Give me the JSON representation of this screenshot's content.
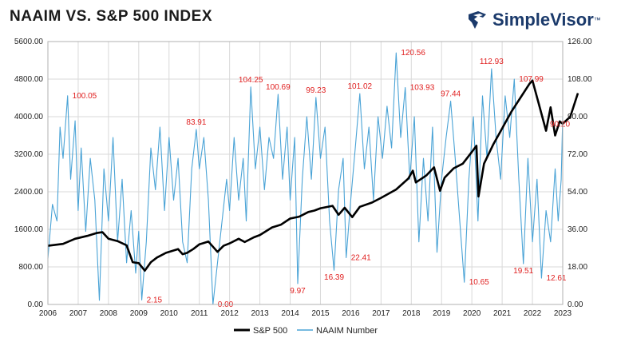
{
  "header": {
    "title": "NAAIM VS. S&P 500 INDEX",
    "brand": "SimpleVisor",
    "brand_tm": "™"
  },
  "chart_data": {
    "type": "line",
    "title": "NAAIM VS. S&P 500 INDEX",
    "x_ticks": [
      "2006",
      "2007",
      "2008",
      "2009",
      "2010",
      "2011",
      "2012",
      "2013",
      "2014",
      "2015",
      "2016",
      "2017",
      "2018",
      "2019",
      "2020",
      "2021",
      "2022",
      "2023"
    ],
    "xlim": [
      2006.0,
      2023.0
    ],
    "y_left": {
      "ticks": [
        "0.00",
        "800.00",
        "1600.00",
        "2400.00",
        "3200.00",
        "4000.00",
        "4800.00",
        "5600.00"
      ],
      "lim": [
        0,
        5600
      ]
    },
    "y_right": {
      "ticks": [
        "0.00",
        "18.00",
        "36.00",
        "54.00",
        "72.00",
        "90.00",
        "108.00",
        "126.00"
      ],
      "lim": [
        0,
        126
      ]
    },
    "grid": true,
    "legend": "bottom",
    "series": [
      {
        "name": "S&P 500",
        "axis": "left",
        "color": "#000000",
        "points": [
          [
            2006.0,
            1250
          ],
          [
            2006.5,
            1290
          ],
          [
            2006.9,
            1400
          ],
          [
            2007.3,
            1460
          ],
          [
            2007.6,
            1520
          ],
          [
            2007.8,
            1540
          ],
          [
            2008.0,
            1400
          ],
          [
            2008.3,
            1350
          ],
          [
            2008.6,
            1260
          ],
          [
            2008.8,
            900
          ],
          [
            2009.0,
            880
          ],
          [
            2009.2,
            720
          ],
          [
            2009.4,
            900
          ],
          [
            2009.6,
            1000
          ],
          [
            2009.9,
            1100
          ],
          [
            2010.3,
            1180
          ],
          [
            2010.45,
            1070
          ],
          [
            2010.6,
            1100
          ],
          [
            2010.8,
            1180
          ],
          [
            2011.0,
            1280
          ],
          [
            2011.3,
            1340
          ],
          [
            2011.6,
            1120
          ],
          [
            2011.8,
            1250
          ],
          [
            2012.0,
            1300
          ],
          [
            2012.3,
            1400
          ],
          [
            2012.5,
            1330
          ],
          [
            2012.8,
            1430
          ],
          [
            2013.0,
            1480
          ],
          [
            2013.4,
            1640
          ],
          [
            2013.7,
            1700
          ],
          [
            2014.0,
            1830
          ],
          [
            2014.3,
            1870
          ],
          [
            2014.6,
            1970
          ],
          [
            2014.8,
            2000
          ],
          [
            2015.0,
            2050
          ],
          [
            2015.4,
            2100
          ],
          [
            2015.6,
            1910
          ],
          [
            2015.8,
            2060
          ],
          [
            2016.05,
            1860
          ],
          [
            2016.3,
            2080
          ],
          [
            2016.7,
            2170
          ],
          [
            2017.0,
            2270
          ],
          [
            2017.5,
            2450
          ],
          [
            2017.9,
            2680
          ],
          [
            2018.05,
            2850
          ],
          [
            2018.15,
            2600
          ],
          [
            2018.5,
            2750
          ],
          [
            2018.75,
            2920
          ],
          [
            2018.95,
            2420
          ],
          [
            2019.1,
            2700
          ],
          [
            2019.4,
            2900
          ],
          [
            2019.7,
            3000
          ],
          [
            2020.0,
            3250
          ],
          [
            2020.15,
            3380
          ],
          [
            2020.22,
            2300
          ],
          [
            2020.4,
            3000
          ],
          [
            2020.7,
            3400
          ],
          [
            2021.0,
            3750
          ],
          [
            2021.3,
            4100
          ],
          [
            2021.6,
            4400
          ],
          [
            2021.9,
            4700
          ],
          [
            2022.0,
            4770
          ],
          [
            2022.2,
            4300
          ],
          [
            2022.45,
            3700
          ],
          [
            2022.6,
            4200
          ],
          [
            2022.75,
            3600
          ],
          [
            2022.9,
            3900
          ],
          [
            2023.0,
            3850
          ],
          [
            2023.25,
            4000
          ],
          [
            2023.5,
            4500
          ]
        ]
      },
      {
        "name": "NAAIM Number",
        "axis": "right",
        "color": "#4aa3d6",
        "points": [
          [
            2006.0,
            22
          ],
          [
            2006.15,
            48
          ],
          [
            2006.3,
            40
          ],
          [
            2006.4,
            85
          ],
          [
            2006.5,
            70
          ],
          [
            2006.65,
            100.05
          ],
          [
            2006.75,
            60
          ],
          [
            2006.9,
            88
          ],
          [
            2007.0,
            45
          ],
          [
            2007.1,
            75
          ],
          [
            2007.25,
            35
          ],
          [
            2007.4,
            70
          ],
          [
            2007.55,
            50
          ],
          [
            2007.7,
            2
          ],
          [
            2007.85,
            65
          ],
          [
            2008.0,
            40
          ],
          [
            2008.15,
            80
          ],
          [
            2008.3,
            30
          ],
          [
            2008.45,
            60
          ],
          [
            2008.6,
            20
          ],
          [
            2008.75,
            45
          ],
          [
            2008.9,
            15
          ],
          [
            2009.0,
            35
          ],
          [
            2009.1,
            2.15
          ],
          [
            2009.25,
            30
          ],
          [
            2009.4,
            75
          ],
          [
            2009.55,
            55
          ],
          [
            2009.7,
            85
          ],
          [
            2009.85,
            45
          ],
          [
            2010.0,
            80
          ],
          [
            2010.15,
            50
          ],
          [
            2010.3,
            70
          ],
          [
            2010.45,
            30
          ],
          [
            2010.6,
            20
          ],
          [
            2010.75,
            65
          ],
          [
            2010.9,
            83.91
          ],
          [
            2011.0,
            65
          ],
          [
            2011.15,
            80
          ],
          [
            2011.3,
            50
          ],
          [
            2011.45,
            0
          ],
          [
            2011.6,
            20
          ],
          [
            2011.75,
            40
          ],
          [
            2011.9,
            60
          ],
          [
            2012.0,
            45
          ],
          [
            2012.15,
            80
          ],
          [
            2012.3,
            50
          ],
          [
            2012.45,
            70
          ],
          [
            2012.55,
            40
          ],
          [
            2012.7,
            104.25
          ],
          [
            2012.85,
            65
          ],
          [
            2013.0,
            85
          ],
          [
            2013.15,
            55
          ],
          [
            2013.3,
            80
          ],
          [
            2013.45,
            70
          ],
          [
            2013.6,
            100.69
          ],
          [
            2013.75,
            60
          ],
          [
            2013.9,
            85
          ],
          [
            2014.0,
            50
          ],
          [
            2014.15,
            80
          ],
          [
            2014.25,
            9.97
          ],
          [
            2014.4,
            60
          ],
          [
            2014.55,
            90
          ],
          [
            2014.7,
            60
          ],
          [
            2014.85,
            99.23
          ],
          [
            2015.0,
            70
          ],
          [
            2015.15,
            85
          ],
          [
            2015.3,
            40
          ],
          [
            2015.45,
            16.39
          ],
          [
            2015.6,
            55
          ],
          [
            2015.75,
            70
          ],
          [
            2015.85,
            22.41
          ],
          [
            2016.0,
            50
          ],
          [
            2016.15,
            75
          ],
          [
            2016.3,
            101.02
          ],
          [
            2016.45,
            65
          ],
          [
            2016.6,
            85
          ],
          [
            2016.75,
            50
          ],
          [
            2016.9,
            90
          ],
          [
            2017.05,
            70
          ],
          [
            2017.2,
            95
          ],
          [
            2017.35,
            75
          ],
          [
            2017.5,
            120.56
          ],
          [
            2017.65,
            80
          ],
          [
            2017.8,
            103.93
          ],
          [
            2017.95,
            60
          ],
          [
            2018.1,
            90
          ],
          [
            2018.25,
            30
          ],
          [
            2018.4,
            70
          ],
          [
            2018.55,
            40
          ],
          [
            2018.7,
            85
          ],
          [
            2018.85,
            25
          ],
          [
            2019.0,
            60
          ],
          [
            2019.15,
            80
          ],
          [
            2019.3,
            97.44
          ],
          [
            2019.45,
            70
          ],
          [
            2019.6,
            40
          ],
          [
            2019.75,
            10.65
          ],
          [
            2019.9,
            60
          ],
          [
            2020.05,
            90
          ],
          [
            2020.2,
            40
          ],
          [
            2020.35,
            100
          ],
          [
            2020.5,
            70
          ],
          [
            2020.65,
            112.93
          ],
          [
            2020.8,
            80
          ],
          [
            2020.95,
            60
          ],
          [
            2021.1,
            100
          ],
          [
            2021.25,
            80
          ],
          [
            2021.4,
            107.99
          ],
          [
            2021.55,
            60
          ],
          [
            2021.7,
            19.51
          ],
          [
            2021.85,
            70
          ],
          [
            2022.0,
            30
          ],
          [
            2022.15,
            60
          ],
          [
            2022.3,
            12.61
          ],
          [
            2022.45,
            45
          ],
          [
            2022.6,
            30
          ],
          [
            2022.75,
            65
          ],
          [
            2022.85,
            40
          ],
          [
            2022.95,
            60
          ],
          [
            2023.0,
            90.2
          ]
        ]
      }
    ],
    "annotations": [
      {
        "text": "100.05",
        "x": 2006.65,
        "y": 100.05,
        "anchor": "right"
      },
      {
        "text": "2.15",
        "x": 2009.1,
        "y": 2.15,
        "anchor": "right"
      },
      {
        "text": "83.91",
        "x": 2010.9,
        "y": 83.91,
        "anchor": "top"
      },
      {
        "text": "0.00",
        "x": 2011.45,
        "y": 0.0,
        "anchor": "right"
      },
      {
        "text": "104.25",
        "x": 2012.7,
        "y": 104.25,
        "anchor": "top"
      },
      {
        "text": "100.69",
        "x": 2013.6,
        "y": 100.69,
        "anchor": "top"
      },
      {
        "text": "9.97",
        "x": 2014.25,
        "y": 9.97,
        "anchor": "bottom"
      },
      {
        "text": "99.23",
        "x": 2014.85,
        "y": 99.23,
        "anchor": "top"
      },
      {
        "text": "16.39",
        "x": 2015.45,
        "y": 16.39,
        "anchor": "bottom"
      },
      {
        "text": "101.02",
        "x": 2016.3,
        "y": 101.02,
        "anchor": "top"
      },
      {
        "text": "22.41",
        "x": 2015.85,
        "y": 22.41,
        "anchor": "right"
      },
      {
        "text": "120.56",
        "x": 2017.5,
        "y": 120.56,
        "anchor": "right"
      },
      {
        "text": "103.93",
        "x": 2017.8,
        "y": 103.93,
        "anchor": "right"
      },
      {
        "text": "97.44",
        "x": 2019.3,
        "y": 97.44,
        "anchor": "top"
      },
      {
        "text": "10.65",
        "x": 2019.75,
        "y": 10.65,
        "anchor": "right"
      },
      {
        "text": "112.93",
        "x": 2020.65,
        "y": 112.93,
        "anchor": "top"
      },
      {
        "text": "107.99",
        "x": 2021.4,
        "y": 107.99,
        "anchor": "right"
      },
      {
        "text": "19.51",
        "x": 2021.7,
        "y": 19.51,
        "anchor": "bottom"
      },
      {
        "text": "12.61",
        "x": 2022.3,
        "y": 12.61,
        "anchor": "right"
      },
      {
        "text": "90.20",
        "x": 2023.0,
        "y": 90.2,
        "anchor": "right"
      }
    ],
    "annotation_color": "#e02020"
  }
}
